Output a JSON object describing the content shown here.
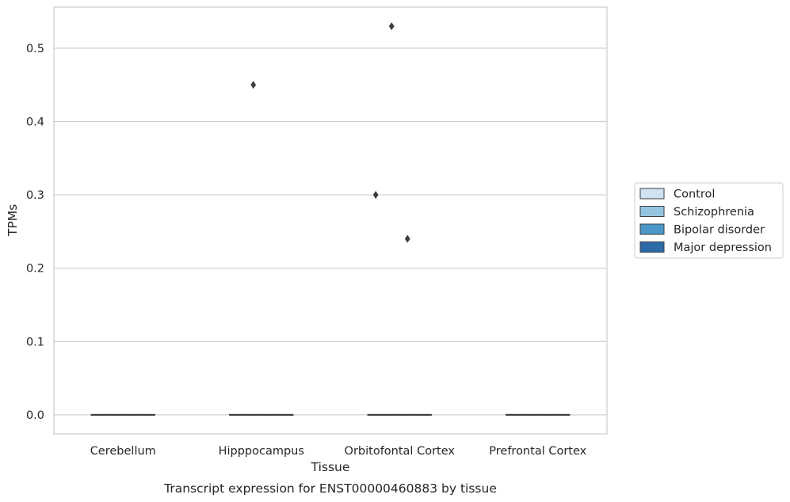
{
  "chart_data": {
    "type": "box",
    "categories": [
      "Cerebellum",
      "Hipppocampus",
      "Orbitofontal Cortex",
      "Prefrontal Cortex"
    ],
    "hue_order": [
      "Control",
      "Schizophrenia",
      "Bipolar disorder",
      "Major depression"
    ],
    "colors": {
      "Control": "#d0e1f2",
      "Schizophrenia": "#94c4df",
      "Bipolar disorder": "#4b98c9",
      "Major depression": "#2d6aa8"
    },
    "boxes_median_value": 0.0,
    "outliers": [
      {
        "category": "Hipppocampus",
        "value": 0.45
      },
      {
        "category": "Orbitofontal Cortex",
        "value": 0.53
      },
      {
        "category": "Orbitofontal Cortex",
        "value": 0.3
      },
      {
        "category": "Orbitofontal Cortex",
        "value": 0.24
      }
    ],
    "xlabel": "Tissue",
    "ylabel": "TPMs",
    "ylim": [
      -0.026,
      0.556
    ],
    "yticks": [
      0.0,
      0.1,
      0.2,
      0.3,
      0.4,
      0.5
    ],
    "ytick_labels": [
      "0.0",
      "0.1",
      "0.2",
      "0.3",
      "0.4",
      "0.5"
    ],
    "grid": "horizontal",
    "legend_position": "right",
    "caption": "Transcript expression for ENST00000460883 by tissue"
  }
}
